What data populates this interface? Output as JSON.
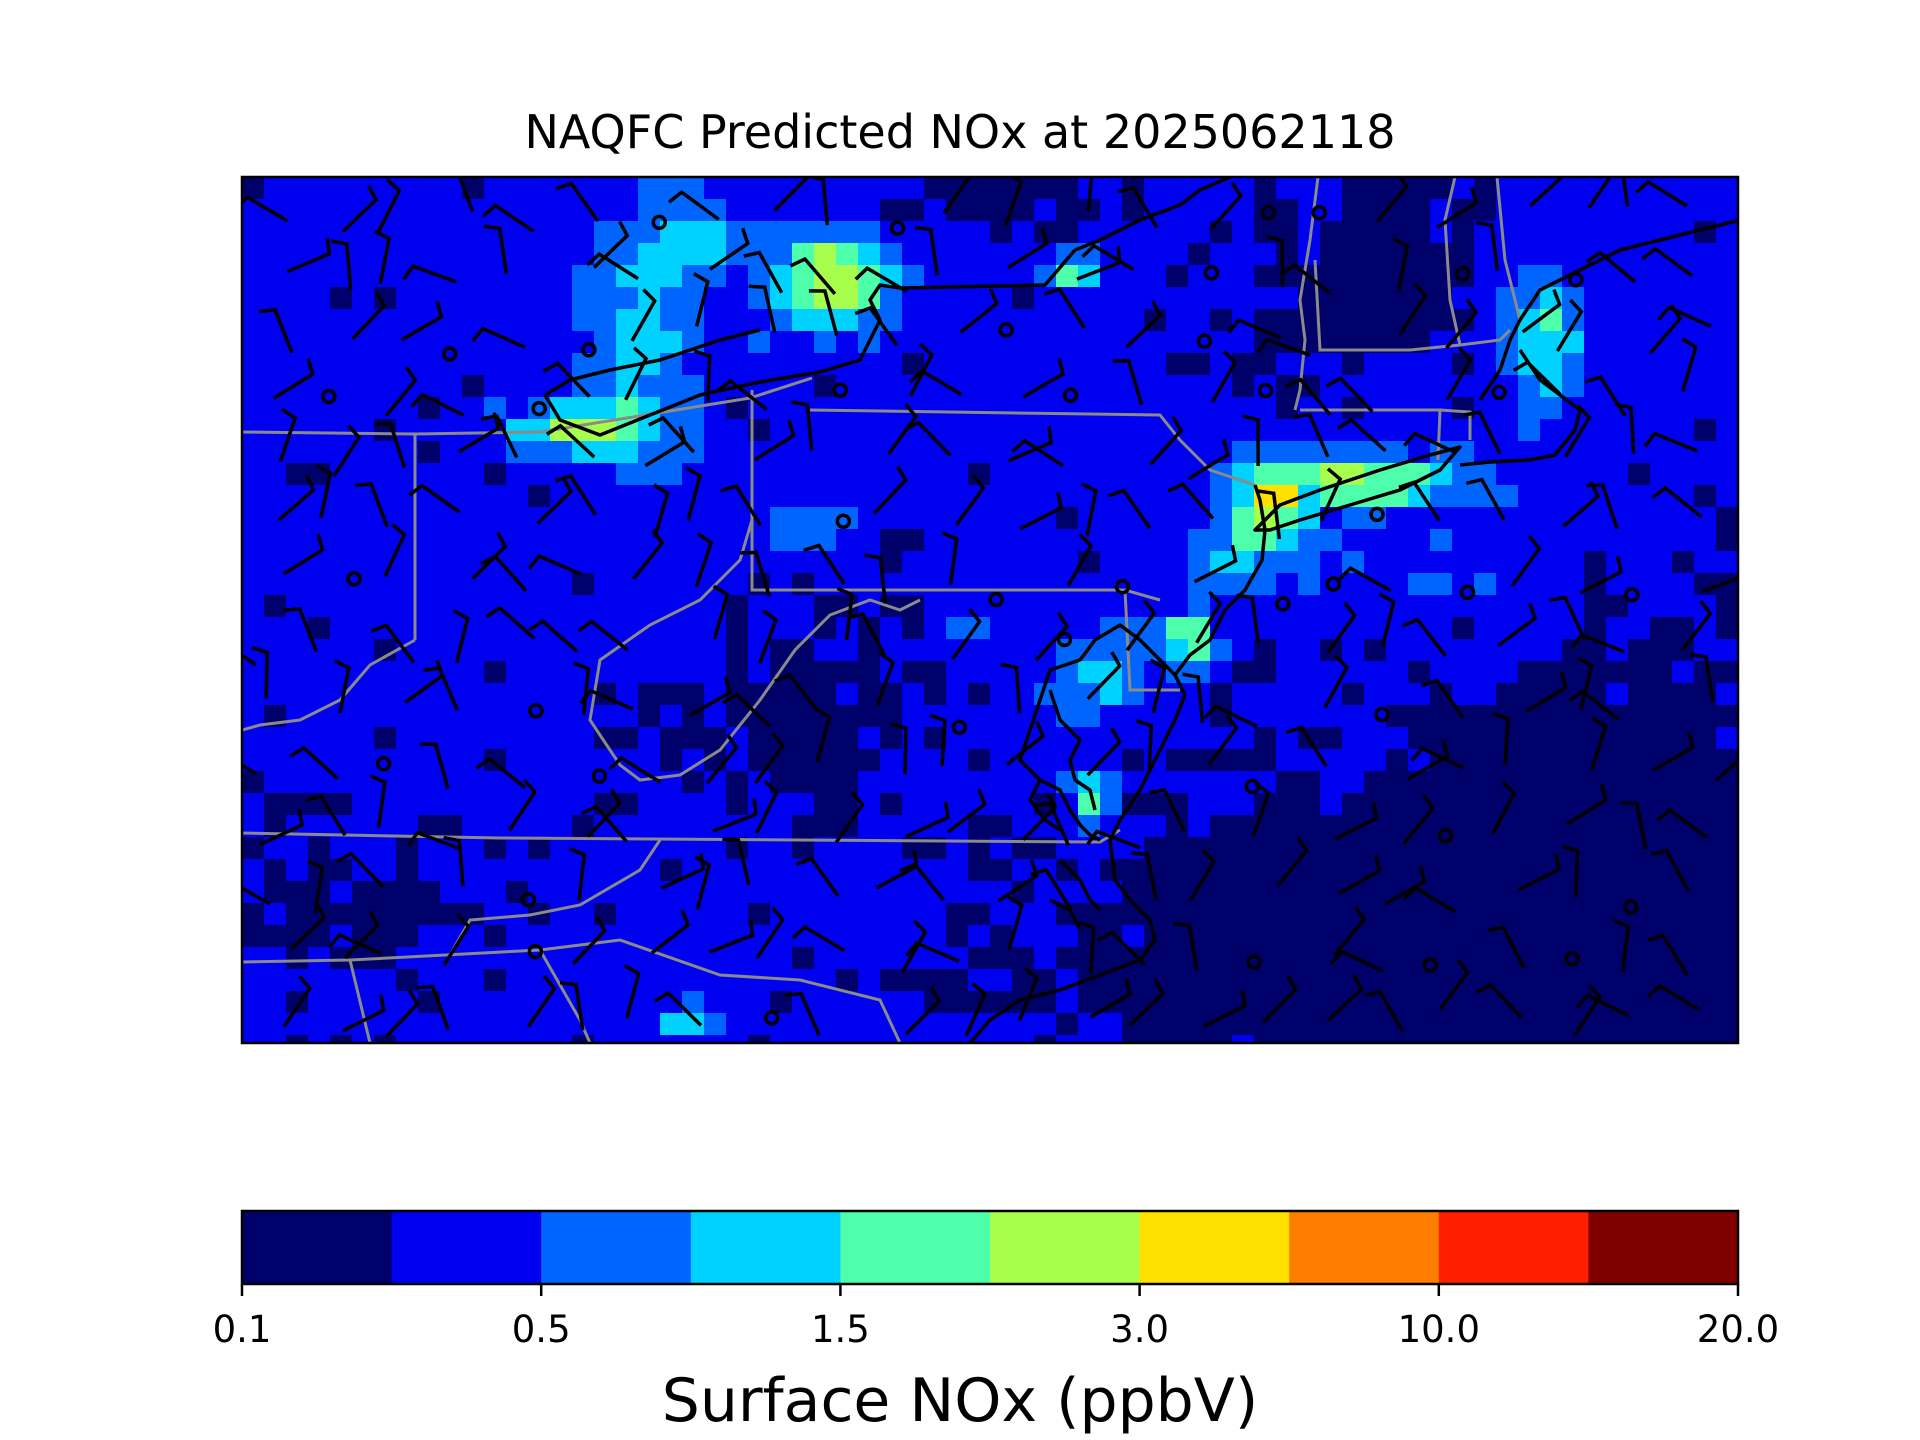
{
  "title": "NAQFC Predicted NOx at 2025062118",
  "colorbar": {
    "label": "Surface NOx (ppbV)",
    "tick_labels": [
      "0.1",
      "0.5",
      "1.5",
      "3.0",
      "10.0",
      "20.0"
    ],
    "colors": [
      "#00006a",
      "#0000f0",
      "#0064ff",
      "#00d2ff",
      "#4dffaa",
      "#a6ff4d",
      "#ffe100",
      "#ff7d00",
      "#ff1e00",
      "#800000"
    ]
  },
  "chart_data": {
    "type": "heatmap",
    "title": "NAQFC Predicted NOx at 2025062118",
    "colorbar_label": "Surface NOx (ppbV)",
    "colorbar_ticks": [
      0.1,
      0.5,
      1.5,
      3.0,
      10.0,
      20.0
    ],
    "colorbar_bins": 10,
    "overlays": [
      "state boundaries",
      "coastlines",
      "wind barbs",
      "calm-wind circles"
    ]
  }
}
